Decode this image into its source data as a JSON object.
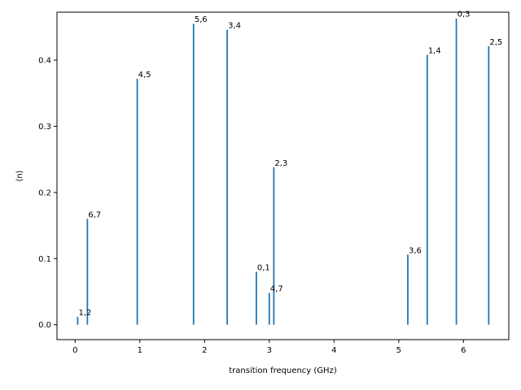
{
  "chart_data": {
    "type": "bar",
    "style": "vertical-lines",
    "xlabel": "transition frequency (GHz)",
    "ylabel": "⟨n⟩",
    "xlim": [
      -0.28,
      6.7
    ],
    "ylim": [
      -0.0225,
      0.4725
    ],
    "xticks": [
      0,
      1,
      2,
      3,
      4,
      5,
      6
    ],
    "yticks": [
      0.0,
      0.1,
      0.2,
      0.3,
      0.4
    ],
    "ytick_labels": [
      "0.0",
      "0.1",
      "0.2",
      "0.3",
      "0.4"
    ],
    "grid": false,
    "color": "#1f77b4",
    "points": [
      {
        "label": "1,2",
        "x": 0.04,
        "y": 0.012
      },
      {
        "label": "6,7",
        "x": 0.19,
        "y": 0.16
      },
      {
        "label": "4,5",
        "x": 0.96,
        "y": 0.372
      },
      {
        "label": "5,6",
        "x": 1.83,
        "y": 0.455
      },
      {
        "label": "3,4",
        "x": 2.35,
        "y": 0.446
      },
      {
        "label": "0,1",
        "x": 2.8,
        "y": 0.08
      },
      {
        "label": "4,7",
        "x": 3.0,
        "y": 0.048
      },
      {
        "label": "2,3",
        "x": 3.07,
        "y": 0.238
      },
      {
        "label": "3,6",
        "x": 5.14,
        "y": 0.106
      },
      {
        "label": "1,4",
        "x": 5.44,
        "y": 0.408
      },
      {
        "label": "0,3",
        "x": 5.89,
        "y": 0.463
      },
      {
        "label": "2,5",
        "x": 6.39,
        "y": 0.421
      }
    ]
  }
}
